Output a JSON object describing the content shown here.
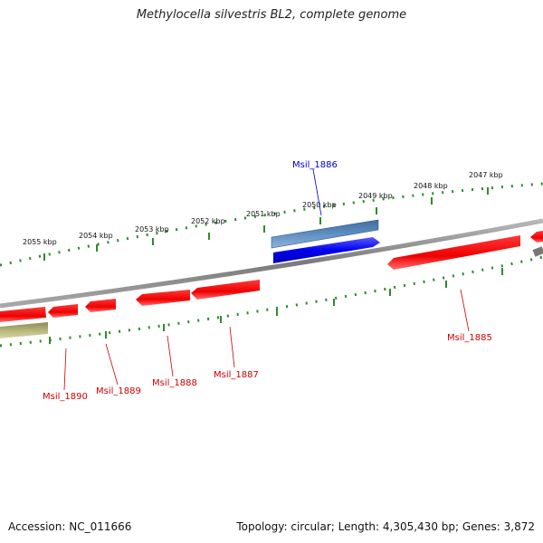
{
  "title": "Methylocella silvestris BL2, complete genome",
  "footer": {
    "accession": "Accession: NC_011666",
    "summary": "Topology: circular; Length: 4,305,430 bp; Genes: 3,872"
  },
  "colors": {
    "backbone": "#8c8c8c",
    "tick": "#2e8b2e",
    "forward_gene": "#0000ee",
    "forward_highlight": "#4f7fb3",
    "reverse_gene": "#ee0000",
    "other_feature": "#b5b57a",
    "label_red": "#cc0000",
    "label_blue": "#0000cc"
  },
  "scale_labels": [
    "2055 kbp",
    "2054 kbp",
    "2053 kbp",
    "2052 kbp",
    "2051 kbp",
    "2050 kbp",
    "2049 kbp",
    "2048 kbp",
    "2047 kbp"
  ],
  "gene_labels": {
    "msil_1886": "Msil_1886",
    "msil_1885": "Msil_1885",
    "msil_1887": "Msil_1887",
    "msil_1888": "Msil_1888",
    "msil_1889": "Msil_1889",
    "msil_1890": "Msil_1890"
  }
}
